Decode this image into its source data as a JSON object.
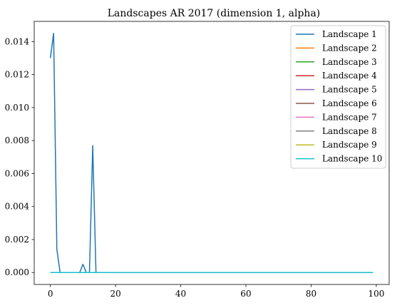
{
  "chart_data": {
    "type": "line",
    "title": "Landscapes AR 2017 (dimension 1, alpha)",
    "xlabel": "",
    "ylabel": "",
    "xlim": [
      -4.95,
      103.95
    ],
    "ylim": [
      -0.000725,
      0.015225
    ],
    "xticks": [
      0,
      20,
      40,
      60,
      80,
      100
    ],
    "xtick_labels": [
      "0",
      "20",
      "40",
      "60",
      "80",
      "100"
    ],
    "yticks": [
      0.0,
      0.002,
      0.004,
      0.006,
      0.008,
      0.01,
      0.012,
      0.014
    ],
    "ytick_labels": [
      "0.000",
      "0.002",
      "0.004",
      "0.006",
      "0.008",
      "0.010",
      "0.012",
      "0.014"
    ],
    "grid": false,
    "legend_position": "top-right",
    "x_range": [
      0,
      99
    ],
    "series": [
      {
        "name": "Landscape 1",
        "color": "#1f77b4",
        "points": [
          [
            0,
            0.013
          ],
          [
            1,
            0.0145
          ],
          [
            2,
            0.0014
          ],
          [
            3,
            0.0
          ],
          [
            9,
            0.0
          ],
          [
            10,
            0.0005
          ],
          [
            11,
            0.0
          ],
          [
            12,
            0.0
          ],
          [
            13,
            0.0077
          ],
          [
            14,
            0.0
          ],
          [
            99,
            0.0
          ]
        ]
      },
      {
        "name": "Landscape 2",
        "color": "#ff7f0e",
        "points": [
          [
            0,
            0.0
          ],
          [
            99,
            0.0
          ]
        ]
      },
      {
        "name": "Landscape 3",
        "color": "#2ca02c",
        "points": [
          [
            0,
            0.0
          ],
          [
            99,
            0.0
          ]
        ]
      },
      {
        "name": "Landscape 4",
        "color": "#d62728",
        "points": [
          [
            0,
            0.0
          ],
          [
            99,
            0.0
          ]
        ]
      },
      {
        "name": "Landscape 5",
        "color": "#9467bd",
        "points": [
          [
            0,
            0.0
          ],
          [
            99,
            0.0
          ]
        ]
      },
      {
        "name": "Landscape 6",
        "color": "#8c564b",
        "points": [
          [
            0,
            0.0
          ],
          [
            99,
            0.0
          ]
        ]
      },
      {
        "name": "Landscape 7",
        "color": "#e377c2",
        "points": [
          [
            0,
            0.0
          ],
          [
            99,
            0.0
          ]
        ]
      },
      {
        "name": "Landscape 8",
        "color": "#7f7f7f",
        "points": [
          [
            0,
            0.0
          ],
          [
            99,
            0.0
          ]
        ]
      },
      {
        "name": "Landscape 9",
        "color": "#bcbd22",
        "points": [
          [
            0,
            0.0
          ],
          [
            99,
            0.0
          ]
        ]
      },
      {
        "name": "Landscape 10",
        "color": "#17becf",
        "points": [
          [
            0,
            0.0
          ],
          [
            99,
            0.0
          ]
        ]
      }
    ]
  }
}
